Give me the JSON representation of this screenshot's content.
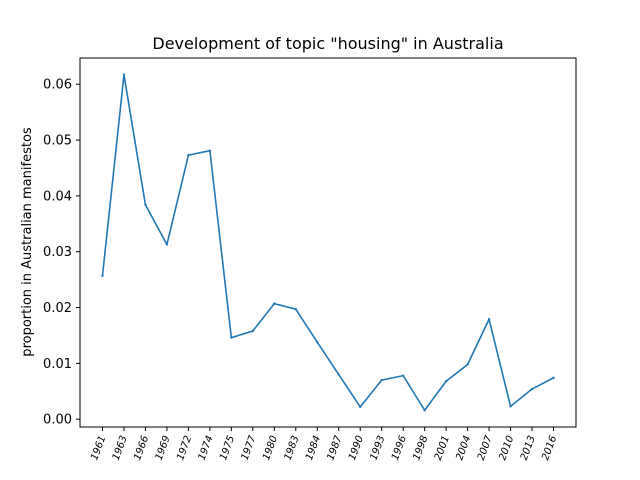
{
  "chart_data": {
    "type": "line",
    "title": "Development of topic \"housing\" in Australia",
    "xlabel": "",
    "ylabel": "proportion in Australian manifestos",
    "categories": [
      "1961",
      "1963",
      "1966",
      "1969",
      "1972",
      "1974",
      "1975",
      "1977",
      "1980",
      "1983",
      "1984",
      "1987",
      "1990",
      "1993",
      "1996",
      "1998",
      "2001",
      "2004",
      "2007",
      "2010",
      "2013",
      "2016"
    ],
    "series": [
      {
        "color": "#1f77b4",
        "values": [
          0.0257,
          0.0617,
          0.0384,
          0.0313,
          0.0473,
          0.0481,
          0.0146,
          0.0158,
          0.0207,
          0.0197,
          0.0138,
          0.008,
          0.0022,
          0.007,
          0.0078,
          0.0016,
          0.0068,
          0.0098,
          0.0179,
          0.0023,
          0.0054,
          0.0074
        ]
      }
    ],
    "yticks": [
      "0.00",
      "0.01",
      "0.02",
      "0.03",
      "0.04",
      "0.05",
      "0.06"
    ],
    "ylim": [
      -0.0014,
      0.0647
    ],
    "grid": false
  }
}
